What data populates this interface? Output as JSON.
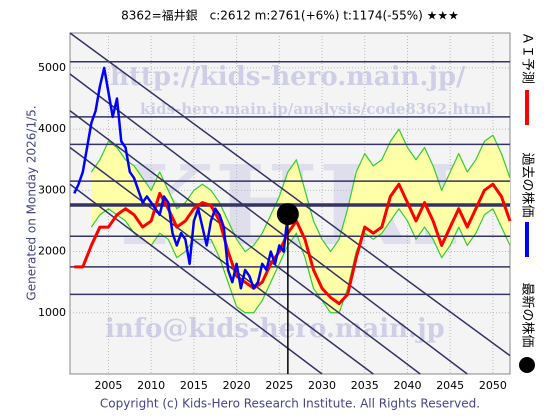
{
  "chart_data": {
    "type": "line",
    "title": "8362=福井銀　c:2612  m:2761(+6%)  t:1174(-55%)  ★★★",
    "side_label": "Generated on Monday 2026/1/5.",
    "footer": "Copyright (c) Kids-Hero Research Institute. All Rights Reserved.",
    "watermarks": [
      "KHRI",
      "http://kids-hero.main.jp/",
      "kids-hero.main.jp/analysis/code8362.html",
      "info@kids-hero.main.jp"
    ],
    "xlim": [
      2000.5,
      2052
    ],
    "ylim": [
      0,
      5570
    ],
    "xticks": [
      2005,
      2010,
      2015,
      2020,
      2025,
      2030,
      2035,
      2040,
      2045,
      2050
    ],
    "yticks": [
      1000,
      2000,
      3000,
      4000,
      5000
    ],
    "grid": true,
    "band_fill": "#ffffa8",
    "series": [
      {
        "name": "過去の株価",
        "color": "#0000ff",
        "x": [
          2001,
          2001.5,
          2002,
          2002.5,
          2003,
          2003.5,
          2004,
          2004.5,
          2005,
          2005.5,
          2006,
          2006.5,
          2007,
          2007.5,
          2008,
          2008.5,
          2009,
          2009.5,
          2010,
          2010.5,
          2011,
          2011.5,
          2012,
          2012.5,
          2013,
          2013.5,
          2014,
          2014.5,
          2015,
          2015.5,
          2016,
          2016.5,
          2017,
          2017.5,
          2018,
          2018.5,
          2019,
          2019.5,
          2020,
          2020.5,
          2021,
          2021.5,
          2022,
          2022.5,
          2023,
          2023.5,
          2024,
          2024.5,
          2025,
          2025.5,
          2026
        ],
        "values": [
          2950,
          3100,
          3300,
          3700,
          4100,
          4300,
          4700,
          5000,
          4600,
          4200,
          4500,
          3800,
          3700,
          3300,
          3200,
          3000,
          2800,
          2900,
          2800,
          2700,
          2600,
          2900,
          2800,
          2300,
          2100,
          2300,
          2200,
          1800,
          2500,
          2700,
          2400,
          2100,
          2500,
          2700,
          2600,
          2400,
          1700,
          1500,
          1800,
          1400,
          1700,
          1600,
          1400,
          1500,
          1800,
          1700,
          2000,
          1800,
          2100,
          2000,
          2612
        ]
      },
      {
        "name": "ＡＩ予測",
        "color": "#ff0000",
        "x": [
          2001,
          2002,
          2003,
          2004,
          2005,
          2006,
          2007,
          2008,
          2009,
          2010,
          2011,
          2012,
          2013,
          2014,
          2015,
          2016,
          2017,
          2018,
          2019,
          2020,
          2021,
          2022,
          2023,
          2024,
          2025,
          2026,
          2027,
          2028,
          2029,
          2030,
          2031,
          2032,
          2033,
          2034,
          2035,
          2036,
          2037,
          2038,
          2039,
          2040,
          2041,
          2042,
          2043,
          2044,
          2045,
          2046,
          2047,
          2048,
          2049,
          2050,
          2051,
          2052
        ],
        "values": [
          1750,
          1750,
          2100,
          2400,
          2400,
          2600,
          2700,
          2600,
          2400,
          2500,
          2950,
          2700,
          2400,
          2500,
          2700,
          2800,
          2750,
          2500,
          2000,
          1600,
          1500,
          1400,
          1500,
          1800,
          2000,
          2300,
          2500,
          2200,
          1700,
          1400,
          1250,
          1150,
          1300,
          1900,
          2400,
          2300,
          2400,
          2900,
          3100,
          2800,
          2500,
          2800,
          2500,
          2100,
          2400,
          2700,
          2400,
          2700,
          3000,
          3100,
          2900,
          2500
        ]
      },
      {
        "color": "#33cc33",
        "x": [
          2003,
          2004,
          2005,
          2006,
          2007,
          2008,
          2009,
          2010,
          2011,
          2012,
          2013,
          2014,
          2015,
          2016,
          2017,
          2018,
          2019,
          2020,
          2021,
          2022,
          2023,
          2024,
          2025,
          2026,
          2027,
          2028,
          2029,
          2030,
          2031,
          2032,
          2033,
          2034,
          2035,
          2036,
          2037,
          2038,
          2039,
          2040,
          2041,
          2042,
          2043,
          2044,
          2045,
          2046,
          2047,
          2048,
          2049,
          2050,
          2051,
          2052
        ],
        "values": [
          3300,
          3500,
          3800,
          3700,
          3500,
          3400,
          3200,
          3000,
          3300,
          3000,
          2700,
          2800,
          3000,
          3100,
          3000,
          2800,
          2500,
          2200,
          2000,
          2100,
          2300,
          2600,
          2900,
          3300,
          3500,
          3000,
          2500,
          2200,
          2000,
          2200,
          2700,
          3300,
          3600,
          3400,
          3500,
          3800,
          4000,
          3700,
          3500,
          3700,
          3400,
          3000,
          3300,
          3600,
          3300,
          3500,
          3800,
          3900,
          3600,
          3200
        ]
      },
      {
        "color": "#33cc33",
        "x": [
          2003,
          2004,
          2005,
          2006,
          2007,
          2008,
          2009,
          2010,
          2011,
          2012,
          2013,
          2014,
          2015,
          2016,
          2017,
          2018,
          2019,
          2020,
          2021,
          2022,
          2023,
          2024,
          2025,
          2026,
          2027,
          2028,
          2029,
          2030,
          2031,
          2032,
          2033,
          2034,
          2035,
          2036,
          2037,
          2038,
          2039,
          2040,
          2041,
          2042,
          2043,
          2044,
          2045,
          2046,
          2047,
          2048,
          2049,
          2050,
          2051,
          2052
        ],
        "values": [
          2400,
          2600,
          2700,
          2600,
          2500,
          2300,
          2200,
          2100,
          2300,
          2200,
          1900,
          2000,
          2200,
          2200,
          2200,
          1900,
          1500,
          1100,
          1000,
          1000,
          1200,
          1500,
          1800,
          2100,
          2300,
          1900,
          1400,
          1200,
          1000,
          1000,
          1400,
          2000,
          2300,
          2200,
          2300,
          2500,
          2700,
          2500,
          2200,
          2400,
          2200,
          1900,
          2100,
          2400,
          2100,
          2300,
          2600,
          2700,
          2400,
          2100
        ]
      }
    ],
    "hlines": [
      5100,
      4200,
      3750,
      3150,
      2250,
      1750,
      1300
    ],
    "hline_color": "#333366",
    "mline": 2761,
    "trend_lines": [
      {
        "x": [
          2000.5,
          2052
        ],
        "y": [
          5570,
          300
        ]
      },
      {
        "x": [
          2000.5,
          2047
        ],
        "y": [
          4900,
          0
        ]
      },
      {
        "x": [
          2000.5,
          2041.5
        ],
        "y": [
          4300,
          0
        ]
      },
      {
        "x": [
          2000.5,
          2036
        ],
        "y": [
          3700,
          0
        ]
      },
      {
        "x": [
          2000.5,
          2030
        ],
        "y": [
          3100,
          0
        ]
      }
    ],
    "latest": {
      "name": "最新の株価",
      "x": 2026,
      "value": 2612,
      "color": "#000000"
    }
  }
}
